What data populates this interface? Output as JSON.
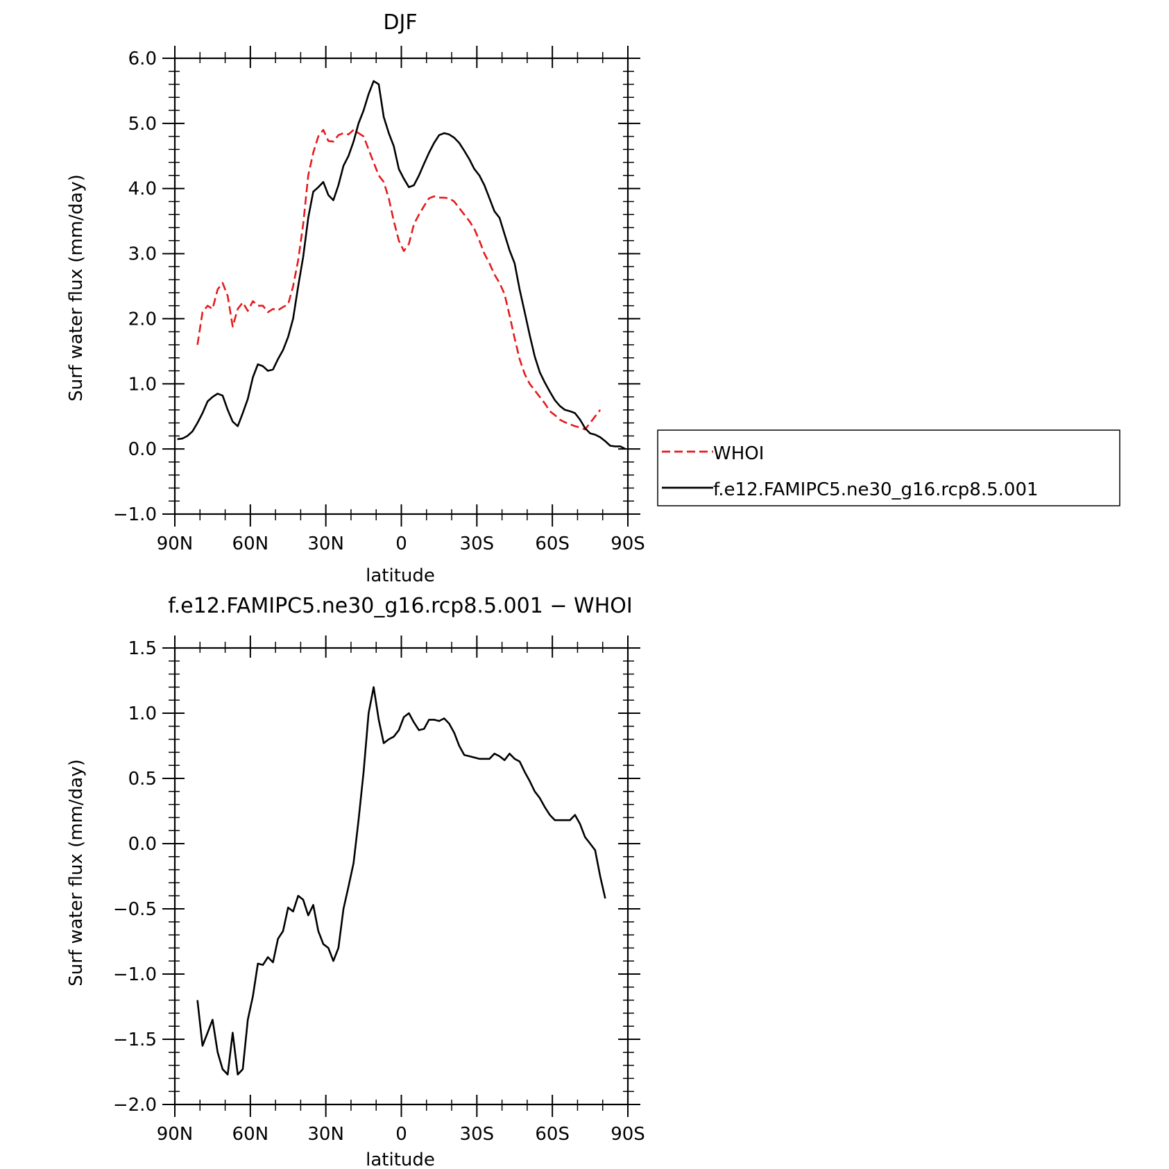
{
  "chart_data": [
    {
      "type": "line",
      "title": "DJF",
      "xlabel": "latitude",
      "ylabel": "Surf water flux (mm/day)",
      "xlim": [
        -90,
        90
      ],
      "ylim": [
        -1.0,
        6.0
      ],
      "x_ticks": [
        {
          "v": -90,
          "label": "90N"
        },
        {
          "v": -60,
          "label": "60N"
        },
        {
          "v": -30,
          "label": "30N"
        },
        {
          "v": 0,
          "label": "0"
        },
        {
          "v": 30,
          "label": "30S"
        },
        {
          "v": 60,
          "label": "60S"
        },
        {
          "v": 90,
          "label": "90S"
        }
      ],
      "y_ticks": [
        {
          "v": 6.0,
          "label": "6.0"
        },
        {
          "v": 5.0,
          "label": "5.0"
        },
        {
          "v": 4.0,
          "label": "4.0"
        },
        {
          "v": 3.0,
          "label": "3.0"
        },
        {
          "v": 2.0,
          "label": "2.0"
        },
        {
          "v": 1.0,
          "label": "1.0"
        },
        {
          "v": 0.0,
          "label": "0.0"
        },
        {
          "v": -1.0,
          "label": "−1.0"
        }
      ],
      "legend_placement": "right",
      "series": [
        {
          "name": "WHOI",
          "color": "#e41a1c",
          "dash": true,
          "points": [
            [
              -81,
              1.6
            ],
            [
              -79,
              2.1
            ],
            [
              -77,
              2.2
            ],
            [
              -75,
              2.15
            ],
            [
              -73,
              2.45
            ],
            [
              -71,
              2.55
            ],
            [
              -69,
              2.35
            ],
            [
              -67,
              1.88
            ],
            [
              -65,
              2.15
            ],
            [
              -63,
              2.25
            ],
            [
              -61,
              2.12
            ],
            [
              -59,
              2.27
            ],
            [
              -57,
              2.2
            ],
            [
              -55,
              2.2
            ],
            [
              -53,
              2.1
            ],
            [
              -51,
              2.15
            ],
            [
              -49,
              2.13
            ],
            [
              -47,
              2.18
            ],
            [
              -45,
              2.22
            ],
            [
              -43,
              2.5
            ],
            [
              -41,
              2.9
            ],
            [
              -39,
              3.45
            ],
            [
              -37,
              4.2
            ],
            [
              -35,
              4.55
            ],
            [
              -33,
              4.8
            ],
            [
              -31,
              4.9
            ],
            [
              -29,
              4.73
            ],
            [
              -27,
              4.72
            ],
            [
              -25,
              4.82
            ],
            [
              -23,
              4.85
            ],
            [
              -21,
              4.83
            ],
            [
              -19,
              4.9
            ],
            [
              -17,
              4.85
            ],
            [
              -15,
              4.8
            ],
            [
              -13,
              4.6
            ],
            [
              -11,
              4.4
            ],
            [
              -9,
              4.2
            ],
            [
              -7,
              4.1
            ],
            [
              -5,
              3.85
            ],
            [
              -3,
              3.5
            ],
            [
              -1,
              3.2
            ],
            [
              1,
              3.04
            ],
            [
              3,
              3.15
            ],
            [
              5,
              3.45
            ],
            [
              7,
              3.6
            ],
            [
              9,
              3.73
            ],
            [
              11,
              3.85
            ],
            [
              13,
              3.88
            ],
            [
              15,
              3.86
            ],
            [
              17,
              3.86
            ],
            [
              19,
              3.85
            ],
            [
              21,
              3.8
            ],
            [
              23,
              3.7
            ],
            [
              25,
              3.6
            ],
            [
              27,
              3.5
            ],
            [
              29,
              3.38
            ],
            [
              31,
              3.2
            ],
            [
              33,
              3.0
            ],
            [
              35,
              2.85
            ],
            [
              37,
              2.68
            ],
            [
              39,
              2.55
            ],
            [
              41,
              2.38
            ],
            [
              43,
              2.05
            ],
            [
              45,
              1.7
            ],
            [
              47,
              1.38
            ],
            [
              49,
              1.15
            ],
            [
              51,
              1.0
            ],
            [
              53,
              0.9
            ],
            [
              55,
              0.8
            ],
            [
              57,
              0.7
            ],
            [
              59,
              0.58
            ],
            [
              61,
              0.52
            ],
            [
              63,
              0.45
            ],
            [
              65,
              0.41
            ],
            [
              67,
              0.38
            ],
            [
              69,
              0.35
            ],
            [
              71,
              0.33
            ],
            [
              73,
              0.3
            ],
            [
              75,
              0.4
            ],
            [
              77,
              0.5
            ],
            [
              79,
              0.6
            ]
          ]
        },
        {
          "name": "f.e12.FAMIPC5.ne30_g16.rcp8.5.001",
          "color": "#000000",
          "dash": false,
          "points": [
            [
              -89,
              0.15
            ],
            [
              -87,
              0.16
            ],
            [
              -85,
              0.2
            ],
            [
              -83,
              0.27
            ],
            [
              -81,
              0.4
            ],
            [
              -79,
              0.55
            ],
            [
              -77,
              0.73
            ],
            [
              -75,
              0.8
            ],
            [
              -73,
              0.85
            ],
            [
              -71,
              0.82
            ],
            [
              -69,
              0.6
            ],
            [
              -67,
              0.42
            ],
            [
              -65,
              0.35
            ],
            [
              -63,
              0.55
            ],
            [
              -61,
              0.77
            ],
            [
              -59,
              1.1
            ],
            [
              -57,
              1.3
            ],
            [
              -55,
              1.27
            ],
            [
              -53,
              1.2
            ],
            [
              -51,
              1.22
            ],
            [
              -49,
              1.38
            ],
            [
              -47,
              1.52
            ],
            [
              -45,
              1.72
            ],
            [
              -43,
              2.0
            ],
            [
              -41,
              2.5
            ],
            [
              -39,
              2.95
            ],
            [
              -37,
              3.55
            ],
            [
              -35,
              3.95
            ],
            [
              -33,
              4.02
            ],
            [
              -31,
              4.1
            ],
            [
              -29,
              3.9
            ],
            [
              -27,
              3.82
            ],
            [
              -25,
              4.05
            ],
            [
              -23,
              4.35
            ],
            [
              -21,
              4.5
            ],
            [
              -19,
              4.72
            ],
            [
              -17,
              5.0
            ],
            [
              -15,
              5.2
            ],
            [
              -13,
              5.45
            ],
            [
              -11,
              5.65
            ],
            [
              -9,
              5.6
            ],
            [
              -7,
              5.1
            ],
            [
              -5,
              4.85
            ],
            [
              -3,
              4.65
            ],
            [
              -1,
              4.3
            ],
            [
              1,
              4.15
            ],
            [
              3,
              4.02
            ],
            [
              5,
              4.05
            ],
            [
              7,
              4.2
            ],
            [
              9,
              4.38
            ],
            [
              11,
              4.55
            ],
            [
              13,
              4.7
            ],
            [
              15,
              4.82
            ],
            [
              17,
              4.85
            ],
            [
              19,
              4.83
            ],
            [
              21,
              4.78
            ],
            [
              23,
              4.7
            ],
            [
              25,
              4.58
            ],
            [
              27,
              4.45
            ],
            [
              29,
              4.3
            ],
            [
              31,
              4.2
            ],
            [
              33,
              4.05
            ],
            [
              35,
              3.85
            ],
            [
              37,
              3.65
            ],
            [
              39,
              3.55
            ],
            [
              41,
              3.3
            ],
            [
              43,
              3.05
            ],
            [
              45,
              2.85
            ],
            [
              47,
              2.45
            ],
            [
              49,
              2.1
            ],
            [
              51,
              1.75
            ],
            [
              53,
              1.42
            ],
            [
              55,
              1.18
            ],
            [
              57,
              1.02
            ],
            [
              59,
              0.88
            ],
            [
              61,
              0.75
            ],
            [
              63,
              0.66
            ],
            [
              65,
              0.6
            ],
            [
              67,
              0.58
            ],
            [
              69,
              0.55
            ],
            [
              71,
              0.45
            ],
            [
              73,
              0.32
            ],
            [
              75,
              0.24
            ],
            [
              77,
              0.22
            ],
            [
              79,
              0.18
            ],
            [
              81,
              0.12
            ],
            [
              83,
              0.05
            ],
            [
              85,
              0.04
            ],
            [
              87,
              0.04
            ],
            [
              89,
              0.0
            ]
          ]
        }
      ]
    },
    {
      "type": "line",
      "title": "f.e12.FAMIPC5.ne30_g16.rcp8.5.001 − WHOI",
      "xlabel": "latitude",
      "ylabel": "Surf water flux (mm/day)",
      "xlim": [
        -90,
        90
      ],
      "ylim": [
        -2.0,
        1.5
      ],
      "x_ticks": [
        {
          "v": -90,
          "label": "90N"
        },
        {
          "v": -60,
          "label": "60N"
        },
        {
          "v": -30,
          "label": "30N"
        },
        {
          "v": 0,
          "label": "0"
        },
        {
          "v": 30,
          "label": "30S"
        },
        {
          "v": 60,
          "label": "60S"
        },
        {
          "v": 90,
          "label": "90S"
        }
      ],
      "y_ticks": [
        {
          "v": 1.5,
          "label": "1.5"
        },
        {
          "v": 1.0,
          "label": "1.0"
        },
        {
          "v": 0.5,
          "label": "0.5"
        },
        {
          "v": 0.0,
          "label": "0.0"
        },
        {
          "v": -0.5,
          "label": "−0.5"
        },
        {
          "v": -1.0,
          "label": "−1.0"
        },
        {
          "v": -1.5,
          "label": "−1.5"
        },
        {
          "v": -2.0,
          "label": "−2.0"
        }
      ],
      "series": [
        {
          "name": "",
          "color": "#000000",
          "dash": false,
          "points": [
            [
              -81,
              -1.2
            ],
            [
              -79,
              -1.55
            ],
            [
              -77,
              -1.45
            ],
            [
              -75,
              -1.35
            ],
            [
              -73,
              -1.6
            ],
            [
              -71,
              -1.73
            ],
            [
              -69,
              -1.77
            ],
            [
              -67,
              -1.45
            ],
            [
              -65,
              -1.77
            ],
            [
              -63,
              -1.73
            ],
            [
              -61,
              -1.35
            ],
            [
              -59,
              -1.17
            ],
            [
              -57,
              -0.92
            ],
            [
              -55,
              -0.93
            ],
            [
              -53,
              -0.87
            ],
            [
              -51,
              -0.91
            ],
            [
              -49,
              -0.73
            ],
            [
              -47,
              -0.67
            ],
            [
              -45,
              -0.49
            ],
            [
              -43,
              -0.52
            ],
            [
              -41,
              -0.4
            ],
            [
              -39,
              -0.43
            ],
            [
              -37,
              -0.55
            ],
            [
              -35,
              -0.47
            ],
            [
              -33,
              -0.67
            ],
            [
              -31,
              -0.77
            ],
            [
              -29,
              -0.8
            ],
            [
              -27,
              -0.9
            ],
            [
              -25,
              -0.8
            ],
            [
              -23,
              -0.5
            ],
            [
              -21,
              -0.33
            ],
            [
              -19,
              -0.15
            ],
            [
              -17,
              0.18
            ],
            [
              -15,
              0.55
            ],
            [
              -13,
              1.0
            ],
            [
              -11,
              1.2
            ],
            [
              -9,
              0.95
            ],
            [
              -7,
              0.77
            ],
            [
              -5,
              0.8
            ],
            [
              -3,
              0.82
            ],
            [
              -1,
              0.87
            ],
            [
              1,
              0.97
            ],
            [
              3,
              1.0
            ],
            [
              5,
              0.93
            ],
            [
              7,
              0.87
            ],
            [
              9,
              0.88
            ],
            [
              11,
              0.95
            ],
            [
              13,
              0.95
            ],
            [
              15,
              0.94
            ],
            [
              17,
              0.96
            ],
            [
              19,
              0.92
            ],
            [
              21,
              0.85
            ],
            [
              23,
              0.75
            ],
            [
              25,
              0.68
            ],
            [
              27,
              0.67
            ],
            [
              29,
              0.66
            ],
            [
              31,
              0.65
            ],
            [
              33,
              0.65
            ],
            [
              35,
              0.65
            ],
            [
              37,
              0.69
            ],
            [
              39,
              0.67
            ],
            [
              41,
              0.64
            ],
            [
              43,
              0.69
            ],
            [
              45,
              0.65
            ],
            [
              47,
              0.63
            ],
            [
              49,
              0.55
            ],
            [
              51,
              0.48
            ],
            [
              53,
              0.4
            ],
            [
              55,
              0.35
            ],
            [
              57,
              0.28
            ],
            [
              59,
              0.22
            ],
            [
              61,
              0.18
            ],
            [
              63,
              0.18
            ],
            [
              65,
              0.18
            ],
            [
              67,
              0.18
            ],
            [
              69,
              0.22
            ],
            [
              71,
              0.15
            ],
            [
              73,
              0.05
            ],
            [
              75,
              0.0
            ],
            [
              77,
              -0.05
            ],
            [
              79,
              -0.25
            ],
            [
              81,
              -0.42
            ]
          ]
        }
      ]
    }
  ]
}
